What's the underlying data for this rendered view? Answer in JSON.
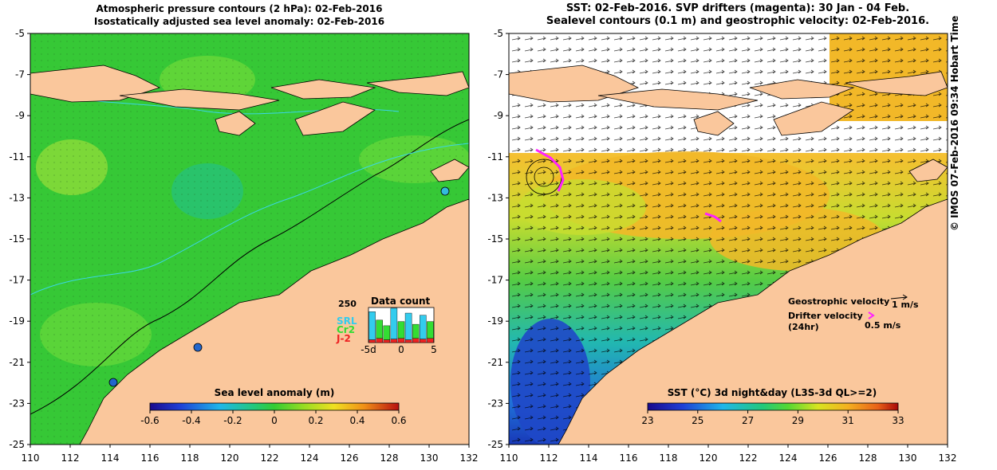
{
  "left_panel": {
    "title_line1": "Atmospheric pressure contours (2 hPa): 02-Feb-2016",
    "title_line2": "Isostatically adjusted sea level anomaly: 02-Feb-2016",
    "colorbar_label": "Sea level anomaly (m)",
    "colorbar_ticks": [
      "-0.6",
      "-0.4",
      "-0.2",
      "0",
      "0.2",
      "0.4",
      "0.6"
    ],
    "data_count": {
      "title": "Data count",
      "ymax_label": "250",
      "xticks": [
        "-5d",
        "0",
        "5"
      ],
      "legend": [
        {
          "label": "SRL",
          "color": "#33ccee"
        },
        {
          "label": "Cr2",
          "color": "#33dd33"
        },
        {
          "label": "J-2",
          "color": "#ee2222"
        }
      ],
      "bars": [
        {
          "j2": 20,
          "cr2": 0,
          "srl": 200
        },
        {
          "j2": 30,
          "cr2": 130,
          "srl": 0
        },
        {
          "j2": 20,
          "cr2": 100,
          "srl": 0
        },
        {
          "j2": 25,
          "cr2": 0,
          "srl": 220
        },
        {
          "j2": 30,
          "cr2": 120,
          "srl": 0
        },
        {
          "j2": 20,
          "cr2": 0,
          "srl": 190
        },
        {
          "j2": 30,
          "cr2": 100,
          "srl": 0
        },
        {
          "j2": 25,
          "cr2": 0,
          "srl": 170
        },
        {
          "j2": 30,
          "cr2": 120,
          "srl": 0
        }
      ]
    }
  },
  "right_panel": {
    "title_line1": "SST: 02-Feb-2016. SVP drifters (magenta): 30 Jan - 04 Feb.",
    "title_line2": "Sealevel contours (0.1 m) and geostrophic velocity: 02-Feb-2016.",
    "colorbar_label": "SST (°C) 3d night&day (L3S-3d QL>=2)",
    "colorbar_ticks": [
      "23",
      "25",
      "27",
      "29",
      "31",
      "33"
    ],
    "legend": {
      "geostrophic_label": "Geostrophic velocity",
      "geostrophic_scale": "1 m/s",
      "drifter_label": "Drifter velocity",
      "drifter_sub": "(24hr)",
      "drifter_scale": "0.5 m/s"
    }
  },
  "axes": {
    "lat_ticks": [
      "-5",
      "-7",
      "-9",
      "-11",
      "-13",
      "-15",
      "-17",
      "-19",
      "-21",
      "-23",
      "-25"
    ],
    "lon_ticks": [
      "110",
      "112",
      "114",
      "116",
      "118",
      "120",
      "122",
      "124",
      "126",
      "128",
      "130",
      "132"
    ]
  },
  "credit": "© IMOS 07-Feb-2016 09:34 Hobart Time",
  "colors": {
    "land": "#fac79c",
    "ocean_green": "#36c836",
    "drifter": "#ff22ff"
  }
}
